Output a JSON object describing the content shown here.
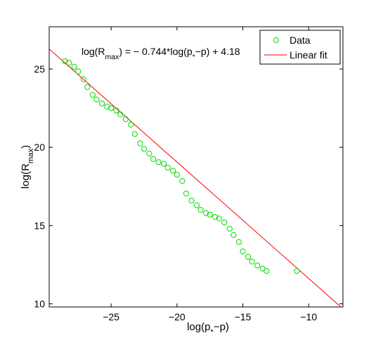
{
  "chart_data": {
    "type": "scatter",
    "title": "",
    "annotation": "log(R_max) = − 0.744*log(p_*−p) + 4.18",
    "xlabel": "log(p_*−p)",
    "ylabel": "log(R_max)",
    "xlim": [
      -29.7,
      -7.4
    ],
    "ylim": [
      9.8,
      27.7
    ],
    "xticks": [
      -25,
      -20,
      -15,
      -10
    ],
    "yticks": [
      10,
      15,
      20,
      25
    ],
    "xtick_labels": [
      "−25",
      "−20",
      "−15",
      "−10"
    ],
    "ytick_labels": [
      "10",
      "15",
      "20",
      "25"
    ],
    "grid": false,
    "legend_position": "top-right",
    "series": [
      {
        "name": "Data",
        "marker": "circle",
        "color": "#00dd00",
        "points": [
          [
            -28.5,
            25.5
          ],
          [
            -28.2,
            25.4
          ],
          [
            -27.8,
            25.15
          ],
          [
            -27.5,
            24.85
          ],
          [
            -27.1,
            24.35
          ],
          [
            -26.8,
            23.85
          ],
          [
            -26.4,
            23.35
          ],
          [
            -26.1,
            23.05
          ],
          [
            -25.7,
            22.8
          ],
          [
            -25.3,
            22.6
          ],
          [
            -25.0,
            22.5
          ],
          [
            -24.6,
            22.35
          ],
          [
            -24.3,
            22.1
          ],
          [
            -23.9,
            21.8
          ],
          [
            -23.5,
            21.45
          ],
          [
            -23.2,
            20.85
          ],
          [
            -22.8,
            20.25
          ],
          [
            -22.5,
            19.9
          ],
          [
            -22.1,
            19.6
          ],
          [
            -21.8,
            19.25
          ],
          [
            -21.4,
            19.05
          ],
          [
            -21.0,
            18.95
          ],
          [
            -20.7,
            18.7
          ],
          [
            -20.3,
            18.5
          ],
          [
            -20.0,
            18.25
          ],
          [
            -19.6,
            17.85
          ],
          [
            -19.3,
            17.05
          ],
          [
            -18.9,
            16.6
          ],
          [
            -18.5,
            16.3
          ],
          [
            -18.2,
            16.0
          ],
          [
            -17.8,
            15.8
          ],
          [
            -17.5,
            15.7
          ],
          [
            -17.1,
            15.55
          ],
          [
            -16.8,
            15.45
          ],
          [
            -16.4,
            15.2
          ],
          [
            -16.0,
            14.8
          ],
          [
            -15.7,
            14.4
          ],
          [
            -15.3,
            13.95
          ],
          [
            -15.0,
            13.35
          ],
          [
            -14.6,
            13.0
          ],
          [
            -14.3,
            12.7
          ],
          [
            -13.9,
            12.45
          ],
          [
            -13.5,
            12.25
          ],
          [
            -13.2,
            12.1
          ],
          [
            -10.9,
            12.1
          ]
        ]
      },
      {
        "name": "Linear fit",
        "type": "line",
        "color": "#ff0000",
        "slope": -0.744,
        "intercept": 4.18,
        "x_range": [
          -29.7,
          -7.4
        ]
      }
    ]
  }
}
